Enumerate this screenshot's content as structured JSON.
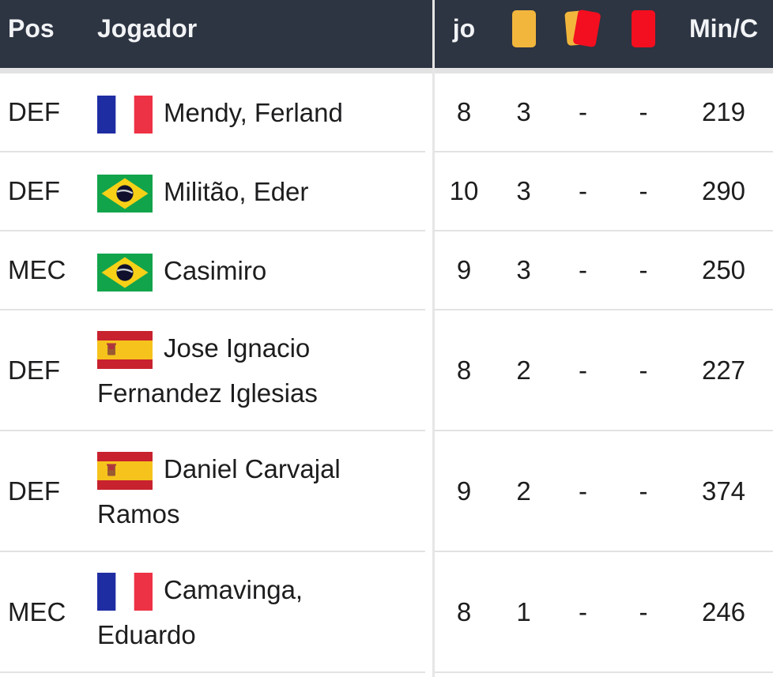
{
  "table": {
    "header": {
      "pos": "Pos",
      "player": "Jogador",
      "jo": "jo",
      "min_c": "Min/C",
      "icons": [
        "yellow-card-icon",
        "yellow-red-card-icon",
        "red-card-icon"
      ]
    },
    "rows": [
      {
        "pos": "DEF",
        "flag": "fr",
        "name_lines": [
          "Mendy, Ferland"
        ],
        "jo": "8",
        "yellow": "3",
        "yellow_red": "-",
        "red": "-",
        "min_c": "219"
      },
      {
        "pos": "DEF",
        "flag": "br",
        "name_lines": [
          "Militão, Eder"
        ],
        "jo": "10",
        "yellow": "3",
        "yellow_red": "-",
        "red": "-",
        "min_c": "290"
      },
      {
        "pos": "MEC",
        "flag": "br",
        "name_lines": [
          "Casimiro"
        ],
        "jo": "9",
        "yellow": "3",
        "yellow_red": "-",
        "red": "-",
        "min_c": "250"
      },
      {
        "pos": "DEF",
        "flag": "es",
        "name_lines": [
          "Jose Ignacio",
          "Fernandez Iglesias"
        ],
        "jo": "8",
        "yellow": "2",
        "yellow_red": "-",
        "red": "-",
        "min_c": "227"
      },
      {
        "pos": "DEF",
        "flag": "es",
        "name_lines": [
          "Daniel Carvajal",
          "Ramos"
        ],
        "jo": "9",
        "yellow": "2",
        "yellow_red": "-",
        "red": "-",
        "min_c": "374"
      },
      {
        "pos": "MEC",
        "flag": "fr",
        "name_lines": [
          "Camavinga,",
          "Eduardo"
        ],
        "jo": "8",
        "yellow": "1",
        "yellow_red": "-",
        "red": "-",
        "min_c": "246"
      }
    ]
  },
  "colors": {
    "header_bg": "#2d3442",
    "header_text": "#f1f3f5",
    "yellow_card": "#f2b63d",
    "red_card": "#f30f1f",
    "row_divider": "#e2e2e2",
    "header_strip": "#e3e3e3",
    "column_separator": "#e6e6e6",
    "body_text": "#1d1d1f",
    "flags": {
      "fr": {
        "blue": "#1f2da3",
        "white": "#ffffff",
        "red": "#ee3245"
      },
      "br": {
        "green": "#12a44b",
        "yellow": "#f7d117",
        "circle": "#10102d",
        "band": "#cdd2d6"
      },
      "es": {
        "red": "#c8222f",
        "yellow": "#f6c31c",
        "emblem": "#9a5a32",
        "emblem_dark": "#b03040"
      }
    }
  }
}
